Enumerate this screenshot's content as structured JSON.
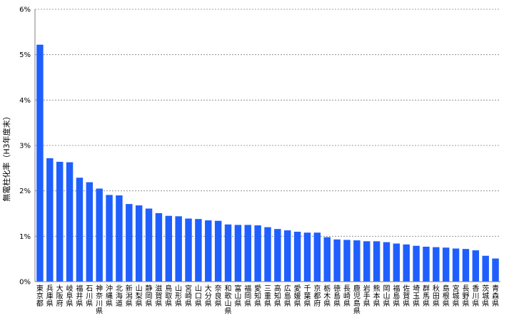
{
  "chart_data": {
    "type": "bar",
    "title": "",
    "xlabel": "",
    "ylabel": "無電柱化率（H3年度末）",
    "ylim": [
      0,
      6
    ],
    "yticks": [
      "0%",
      "1%",
      "2%",
      "3%",
      "4%",
      "5%",
      "6%"
    ],
    "grid": true,
    "bar_color": "#1f5fff",
    "categories": [
      "東京都",
      "兵庫県",
      "大阪府",
      "岐阜県",
      "福井県",
      "石川県",
      "神奈川県",
      "沖縄県",
      "北海道",
      "新潟県",
      "山梨県",
      "静岡県",
      "滋賀県",
      "鳥取県",
      "山形県",
      "宮崎県",
      "山口県",
      "大分県",
      "奈良県",
      "和歌山県",
      "富山県",
      "福岡県",
      "愛知県",
      "三重県",
      "高知県",
      "広島県",
      "愛媛県",
      "千葉県",
      "京都府",
      "栃木県",
      "徳島県",
      "長崎県",
      "鹿児島県",
      "岩手県",
      "熊本県",
      "岡山県",
      "福島県",
      "佐賀県",
      "埼玉県",
      "群馬県",
      "秋田県",
      "島根県",
      "宮城県",
      "長野県",
      "香川県",
      "茨城県",
      "青森県"
    ],
    "values": [
      5.22,
      2.72,
      2.64,
      2.63,
      2.29,
      2.19,
      2.05,
      1.91,
      1.9,
      1.71,
      1.68,
      1.61,
      1.51,
      1.45,
      1.44,
      1.39,
      1.38,
      1.35,
      1.34,
      1.26,
      1.25,
      1.25,
      1.24,
      1.2,
      1.16,
      1.13,
      1.1,
      1.08,
      1.08,
      0.98,
      0.93,
      0.92,
      0.91,
      0.89,
      0.89,
      0.87,
      0.84,
      0.82,
      0.79,
      0.77,
      0.76,
      0.75,
      0.73,
      0.72,
      0.69,
      0.57,
      0.51
    ]
  }
}
